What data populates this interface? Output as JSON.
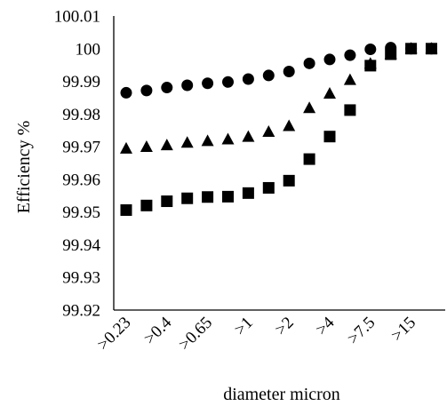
{
  "chart_data": {
    "type": "scatter",
    "title": "",
    "xlabel": "diameter micron",
    "ylabel": "Efficiency %",
    "ylim": [
      99.92,
      100.01
    ],
    "y_ticks": [
      "99.92",
      "99.93",
      "99.94",
      "99.95",
      "99.96",
      "99.97",
      "99.98",
      "99.99",
      "100",
      "100.01"
    ],
    "x_positions": [
      1,
      2,
      3,
      4,
      5,
      6,
      7,
      8,
      9,
      10,
      11,
      12,
      13,
      14,
      15,
      16
    ],
    "x_tick_labels": [
      {
        "position": 1,
        "label": ">0.23"
      },
      {
        "position": 3,
        "label": ">0.4"
      },
      {
        "position": 5,
        "label": ">0.65"
      },
      {
        "position": 7,
        "label": ">1"
      },
      {
        "position": 9,
        "label": ">2"
      },
      {
        "position": 11,
        "label": ">4"
      },
      {
        "position": 13,
        "label": ">7.5"
      },
      {
        "position": 15,
        "label": ">15"
      }
    ],
    "grid": false,
    "legend": "none",
    "series": [
      {
        "marker": "circle",
        "color": "#000000",
        "values": [
          99.9865,
          99.9872,
          99.9881,
          99.9888,
          99.9894,
          99.9898,
          99.9907,
          99.9918,
          99.993,
          99.9955,
          99.9967,
          99.998,
          99.9998,
          100.0003,
          100.0,
          100.0
        ]
      },
      {
        "marker": "triangle",
        "color": "#000000",
        "values": [
          99.9694,
          99.9699,
          99.9704,
          99.9712,
          99.9717,
          99.9722,
          99.973,
          99.9745,
          99.9763,
          99.9818,
          99.9862,
          99.9904,
          99.9954,
          99.9983,
          100.0,
          100.0
        ]
      },
      {
        "marker": "square",
        "color": "#000000",
        "values": [
          99.9506,
          99.952,
          99.9533,
          99.9542,
          99.9546,
          99.9547,
          99.9558,
          99.9574,
          99.9596,
          99.9662,
          99.9731,
          99.9812,
          99.9948,
          99.9983,
          100.0,
          100.0
        ]
      }
    ]
  }
}
